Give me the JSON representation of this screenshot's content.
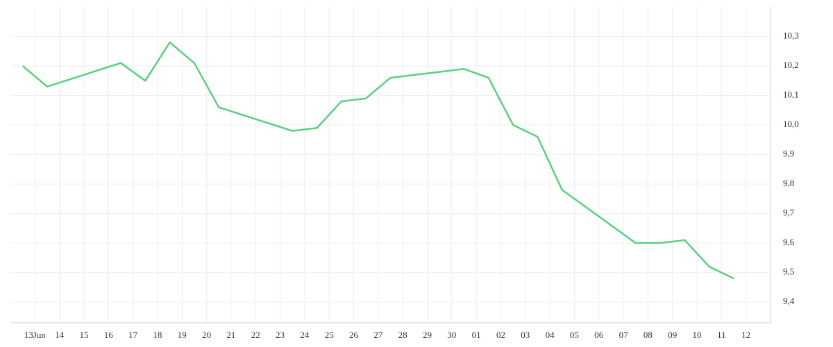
{
  "chart_data": {
    "type": "line",
    "color": "#57d07f",
    "grid": true,
    "x": [
      12.5,
      13.5,
      16.5,
      17.5,
      18.5,
      19.5,
      20.5,
      23.5,
      24.5,
      25.5,
      26.5,
      27.5,
      30.5,
      31.5,
      32.5,
      33.5,
      34.5,
      37.5,
      38.5,
      39.5,
      40.5,
      41.5
    ],
    "values": [
      10.2,
      10.13,
      10.21,
      10.15,
      10.28,
      10.21,
      10.06,
      9.98,
      9.99,
      10.08,
      10.09,
      10.16,
      10.19,
      10.16,
      10.0,
      9.96,
      9.78,
      9.6,
      9.6,
      9.61,
      9.52,
      9.48
    ],
    "xlim": [
      12,
      43
    ],
    "xticks": [
      {
        "value": 13,
        "label": "13Jun"
      },
      14,
      15,
      16,
      17,
      18,
      19,
      20,
      21,
      22,
      23,
      24,
      25,
      26,
      27,
      28,
      29,
      30,
      {
        "value": 31,
        "label": "01"
      },
      {
        "value": 32,
        "label": "02"
      },
      {
        "value": 33,
        "label": "03"
      },
      {
        "value": 34,
        "label": "04"
      },
      {
        "value": 35,
        "label": "05"
      },
      {
        "value": 36,
        "label": "06"
      },
      {
        "value": 37,
        "label": "07"
      },
      {
        "value": 38,
        "label": "08"
      },
      {
        "value": 39,
        "label": "09"
      },
      {
        "value": 40,
        "label": "10"
      },
      {
        "value": 41,
        "label": "11"
      },
      {
        "value": 42,
        "label": "12"
      }
    ],
    "ylim": [
      9.33,
      10.4
    ],
    "yticks": [
      {
        "value": 9.4,
        "label": "9,4"
      },
      {
        "value": 9.5,
        "label": "9,5"
      },
      {
        "value": 9.6,
        "label": "9,6"
      },
      {
        "value": 9.7,
        "label": "9,7"
      },
      {
        "value": 9.8,
        "label": "9,8"
      },
      {
        "value": 9.9,
        "label": "9,9"
      },
      {
        "value": 10.0,
        "label": "10,0"
      },
      {
        "value": 10.1,
        "label": "10,1"
      },
      {
        "value": 10.2,
        "label": "10,2"
      },
      {
        "value": 10.3,
        "label": "10,3"
      }
    ]
  }
}
